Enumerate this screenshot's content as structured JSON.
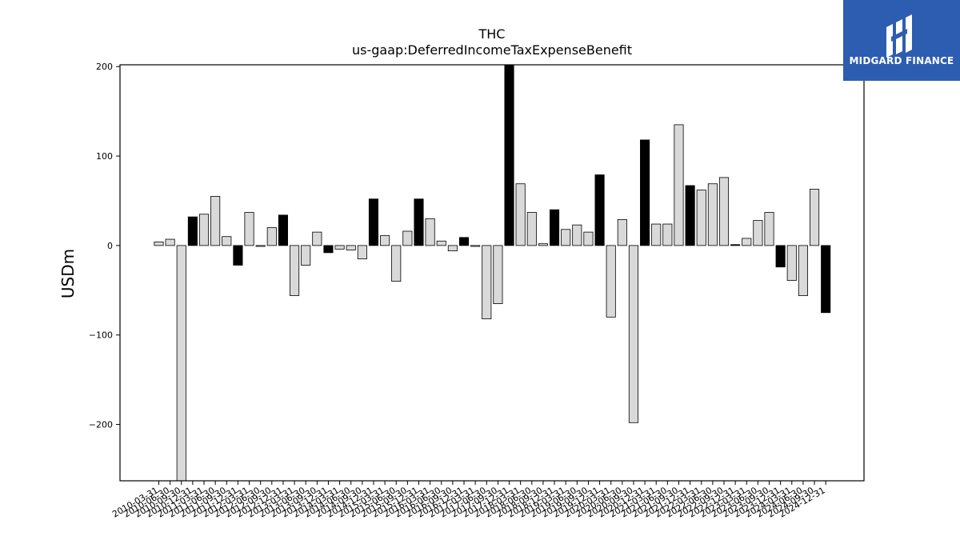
{
  "chart_data": {
    "type": "bar",
    "title": "THC",
    "subtitle": "us-gaap:DeferredIncomeTaxExpenseBenefit",
    "ylabel": "USDm",
    "xlabel": "",
    "ylim": [
      -263,
      202
    ],
    "yticks": [
      -200,
      -100,
      0,
      100,
      200
    ],
    "grid": false,
    "colors": {
      "annual": "#000000",
      "quarter": "#d9d9d9",
      "edge": "#000000"
    },
    "categories": [
      "2010-03-31",
      "2010-06-30",
      "2010-09-30",
      "2010-12-31",
      "2011-03-31",
      "2011-06-30",
      "2011-09-30",
      "2011-12-31",
      "2012-03-31",
      "2012-06-30",
      "2012-09-30",
      "2012-12-31",
      "2013-03-31",
      "2013-06-30",
      "2013-09-30",
      "2013-12-31",
      "2014-03-31",
      "2014-06-30",
      "2014-09-30",
      "2014-12-31",
      "2015-03-31",
      "2015-06-30",
      "2015-09-30",
      "2015-12-31",
      "2016-03-31",
      "2016-06-30",
      "2016-09-30",
      "2016-12-31",
      "2017-03-31",
      "2017-06-30",
      "2017-09-30",
      "2017-12-31",
      "2018-03-31",
      "2018-06-30",
      "2018-09-30",
      "2018-12-31",
      "2019-03-31",
      "2019-06-30",
      "2019-09-30",
      "2019-12-31",
      "2020-03-31",
      "2020-06-30",
      "2020-09-30",
      "2020-12-31",
      "2021-03-31",
      "2021-06-30",
      "2021-09-30",
      "2021-12-31",
      "2022-03-31",
      "2022-06-30",
      "2022-09-30",
      "2022-12-31",
      "2023-03-31",
      "2023-06-30",
      "2023-09-30",
      "2023-12-31",
      "2024-03-31",
      "2024-06-30",
      "2024-09-30",
      "2024-12-31"
    ],
    "values": [
      4,
      7,
      -263,
      32,
      35,
      55,
      10,
      -22,
      37,
      -1,
      20,
      34,
      -56,
      -22,
      15,
      -8,
      -4,
      -5,
      -15,
      52,
      11,
      -40,
      16,
      52,
      30,
      5,
      -6,
      9,
      -1,
      -82,
      -65,
      202,
      69,
      37,
      2,
      40,
      18,
      23,
      15,
      79,
      -80,
      29,
      -198,
      118,
      24,
      24,
      135,
      67,
      62,
      69,
      76,
      1,
      8,
      28,
      37,
      -24,
      -39,
      -56,
      63,
      -75
    ],
    "is_annual": [
      false,
      false,
      false,
      true,
      false,
      false,
      false,
      true,
      false,
      false,
      false,
      true,
      false,
      false,
      false,
      true,
      false,
      false,
      false,
      true,
      false,
      false,
      false,
      true,
      false,
      false,
      false,
      true,
      false,
      false,
      false,
      true,
      false,
      false,
      false,
      true,
      false,
      false,
      false,
      true,
      false,
      false,
      false,
      true,
      false,
      false,
      false,
      true,
      false,
      false,
      false,
      true,
      false,
      false,
      false,
      true,
      false,
      false,
      false,
      true
    ]
  },
  "logo": {
    "text": "MIDGARD FINANCE",
    "icon": "midgard-logo-icon"
  }
}
